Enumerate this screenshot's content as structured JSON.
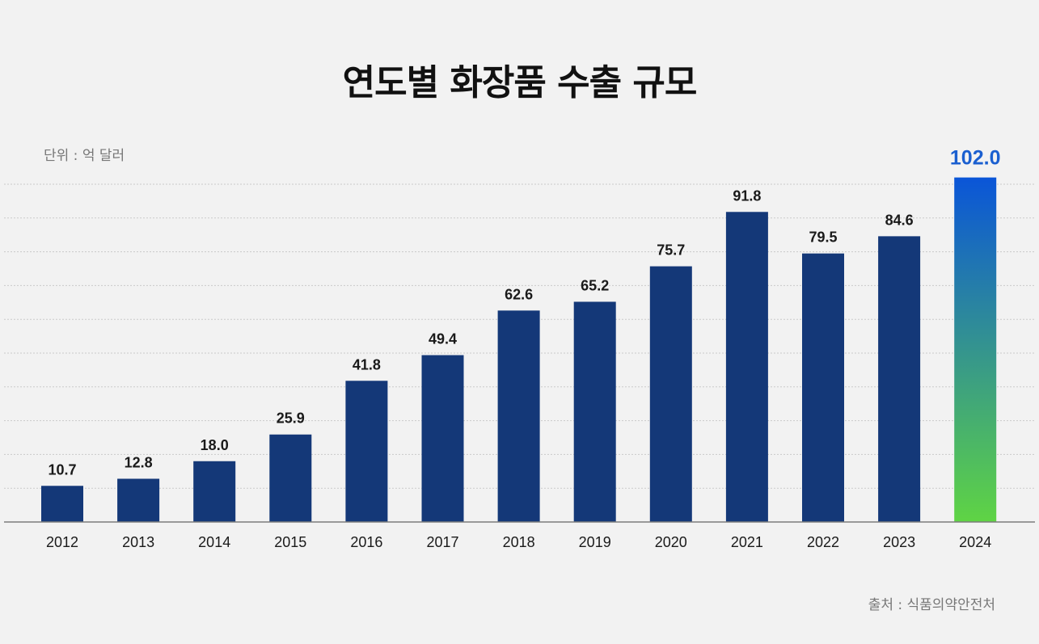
{
  "title": "연도별 화장품 수출 규모",
  "unit_label": "단위 : 억 달러",
  "source_label": "출처 : 식품의약안전처",
  "colors": {
    "bar": "#143878",
    "highlight_top": "#0a55d8",
    "highlight_bottom": "#5fd444",
    "highlight_label": "#1a5fd0",
    "grid": "#c9c9c9",
    "baseline": "#7d7d7d"
  },
  "chart_data": {
    "type": "bar",
    "title": "연도별 화장품 수출 규모",
    "unit": "억 달러",
    "categories": [
      "2012",
      "2013",
      "2014",
      "2015",
      "2016",
      "2017",
      "2018",
      "2019",
      "2020",
      "2021",
      "2022",
      "2023",
      "2024"
    ],
    "values": [
      10.7,
      12.8,
      18.0,
      25.9,
      41.8,
      49.4,
      62.6,
      65.2,
      75.7,
      91.8,
      79.5,
      84.6,
      102.0
    ],
    "value_labels": [
      "10.7",
      "12.8",
      "18.0",
      "25.9",
      "41.8",
      "49.4",
      "62.6",
      "65.2",
      "75.7",
      "91.8",
      "79.5",
      "84.6",
      "102.0"
    ],
    "highlight_category": "2024",
    "grid": true,
    "legend": "none"
  }
}
